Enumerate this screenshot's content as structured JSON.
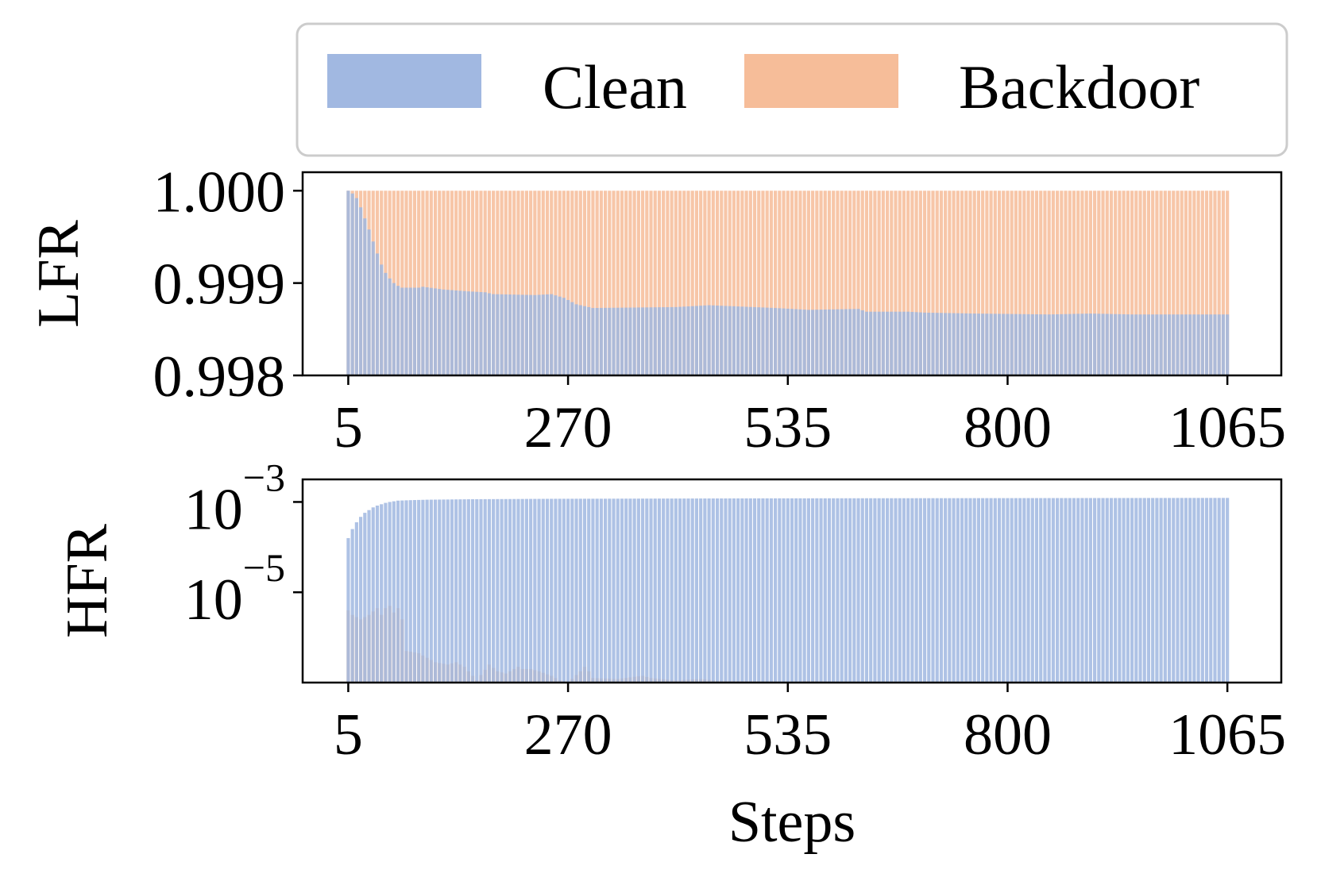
{
  "colors": {
    "clean": "#a1b8e1",
    "backdoor": "#f6bd99",
    "axis": "#000000",
    "legend_border": "#cccccc"
  },
  "legend": {
    "placement": "top",
    "entries": [
      {
        "key": "clean",
        "label": "Clean"
      },
      {
        "key": "backdoor",
        "label": "Backdoor"
      }
    ]
  },
  "chart_data": [
    {
      "type": "bar",
      "ylabel": "LFR",
      "xlabel": "",
      "y_scale": "linear",
      "ylim": [
        0.998,
        1.0002
      ],
      "y_ticks": [
        "0.998",
        "0.999",
        "1.000"
      ],
      "x_ticks": [
        "5",
        "270",
        "535",
        "800",
        "1065"
      ],
      "xlim": [
        -50,
        1130
      ],
      "step_range": [
        5,
        1065
      ],
      "step_interval": 5,
      "overlay": true,
      "grid": false,
      "series": [
        {
          "name": "Clean",
          "key": "clean",
          "anchors": [
            [
              5,
              1.0
            ],
            [
              10,
              0.99997
            ],
            [
              15,
              0.99992
            ],
            [
              20,
              0.99982
            ],
            [
              25,
              0.9997
            ],
            [
              30,
              0.99958
            ],
            [
              35,
              0.99945
            ],
            [
              40,
              0.99932
            ],
            [
              45,
              0.9992
            ],
            [
              50,
              0.99911
            ],
            [
              55,
              0.99905
            ],
            [
              60,
              0.999
            ],
            [
              65,
              0.99897
            ],
            [
              70,
              0.99895
            ],
            [
              90,
              0.99895
            ],
            [
              95,
              0.99896
            ],
            [
              120,
              0.99893
            ],
            [
              150,
              0.99891
            ],
            [
              170,
              0.9989
            ],
            [
              180,
              0.99888
            ],
            [
              230,
              0.99887
            ],
            [
              250,
              0.99888
            ],
            [
              265,
              0.99884
            ],
            [
              280,
              0.99877
            ],
            [
              300,
              0.99873
            ],
            [
              400,
              0.99874
            ],
            [
              440,
              0.99876
            ],
            [
              520,
              0.99873
            ],
            [
              560,
              0.99871
            ],
            [
              620,
              0.99872
            ],
            [
              630,
              0.99869
            ],
            [
              680,
              0.99869
            ],
            [
              700,
              0.99868
            ],
            [
              760,
              0.99867
            ],
            [
              850,
              0.99866
            ],
            [
              900,
              0.99867
            ],
            [
              950,
              0.99866
            ],
            [
              1065,
              0.99866
            ]
          ]
        },
        {
          "name": "Backdoor",
          "key": "backdoor",
          "anchors": [
            [
              5,
              1.0
            ],
            [
              1065,
              1.0
            ]
          ]
        }
      ]
    },
    {
      "type": "bar",
      "ylabel": "HFR",
      "xlabel": "Steps",
      "y_scale": "log",
      "ylim_log10": [
        -7,
        -2.5
      ],
      "y_ticks": [
        {
          "base": "10",
          "exponent": "−3",
          "log10": -3
        },
        {
          "base": "10",
          "exponent": "−5",
          "log10": -5
        }
      ],
      "x_ticks": [
        "5",
        "270",
        "535",
        "800",
        "1065"
      ],
      "xlim": [
        -50,
        1130
      ],
      "step_range": [
        5,
        1065
      ],
      "step_interval": 5,
      "overlay": true,
      "grid": false,
      "series": [
        {
          "name": "Clean",
          "key": "clean",
          "anchors": [
            [
              5,
              -3.8
            ],
            [
              10,
              -3.6
            ],
            [
              15,
              -3.45
            ],
            [
              20,
              -3.33
            ],
            [
              25,
              -3.24
            ],
            [
              30,
              -3.18
            ],
            [
              35,
              -3.12
            ],
            [
              40,
              -3.08
            ],
            [
              45,
              -3.05
            ],
            [
              50,
              -3.02
            ],
            [
              55,
              -3.0
            ],
            [
              65,
              -2.97
            ],
            [
              80,
              -2.96
            ],
            [
              100,
              -2.95
            ],
            [
              150,
              -2.94
            ],
            [
              250,
              -2.93
            ],
            [
              500,
              -2.92
            ],
            [
              1065,
              -2.91
            ]
          ]
        },
        {
          "name": "Backdoor",
          "key": "backdoor",
          "anchors": [
            [
              5,
              -5.4
            ],
            [
              10,
              -5.5
            ],
            [
              20,
              -5.6
            ],
            [
              30,
              -5.5
            ],
            [
              40,
              -5.35
            ],
            [
              45,
              -5.5
            ],
            [
              50,
              -5.35
            ],
            [
              55,
              -5.3
            ],
            [
              60,
              -5.45
            ],
            [
              65,
              -5.35
            ],
            [
              70,
              -5.6
            ],
            [
              75,
              -6.3
            ],
            [
              90,
              -6.35
            ],
            [
              100,
              -6.45
            ],
            [
              110,
              -6.55
            ],
            [
              125,
              -6.6
            ],
            [
              135,
              -6.55
            ],
            [
              145,
              -6.65
            ],
            [
              155,
              -6.85
            ],
            [
              160,
              -6.95
            ],
            [
              175,
              -6.6
            ],
            [
              185,
              -6.75
            ],
            [
              195,
              -6.8
            ],
            [
              210,
              -6.65
            ],
            [
              215,
              -6.7
            ],
            [
              225,
              -6.7
            ],
            [
              235,
              -6.75
            ],
            [
              250,
              -6.85
            ],
            [
              260,
              -6.95
            ],
            [
              270,
              -7.0
            ],
            [
              285,
              -6.75
            ],
            [
              290,
              -6.65
            ],
            [
              295,
              -6.75
            ],
            [
              300,
              -6.9
            ],
            [
              330,
              -6.92
            ],
            [
              360,
              -6.85
            ],
            [
              370,
              -6.9
            ],
            [
              400,
              -6.95
            ],
            [
              430,
              -6.92
            ],
            [
              450,
              -6.96
            ],
            [
              500,
              -6.97
            ],
            [
              540,
              -6.99
            ],
            [
              560,
              -6.96
            ],
            [
              600,
              -6.99
            ],
            [
              700,
              -6.99
            ],
            [
              800,
              -6.98
            ],
            [
              1065,
              -6.99
            ]
          ]
        }
      ]
    }
  ]
}
